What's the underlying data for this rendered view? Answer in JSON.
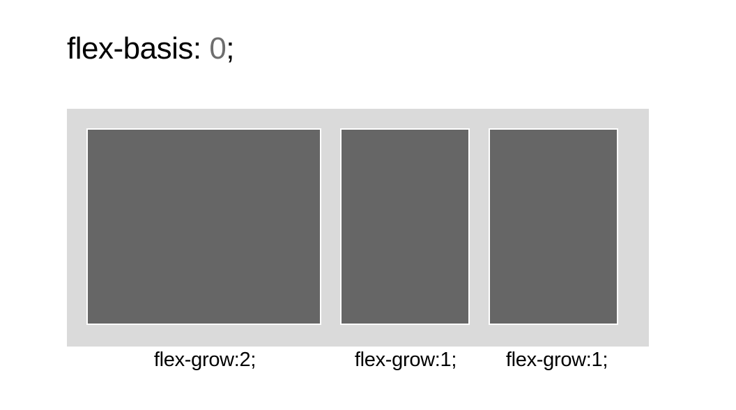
{
  "heading": {
    "property": "flex-basis:",
    "value": "0",
    "terminator": ";"
  },
  "items": [
    {
      "label": "flex-grow:2;",
      "grow": 2
    },
    {
      "label": "flex-grow:1;",
      "grow": 1
    },
    {
      "label": "flex-grow:1;",
      "grow": 1
    }
  ],
  "colors": {
    "container": "#dadada",
    "item": "#666666",
    "item_border": "#ffffff",
    "value_text": "#6e6e6e"
  }
}
